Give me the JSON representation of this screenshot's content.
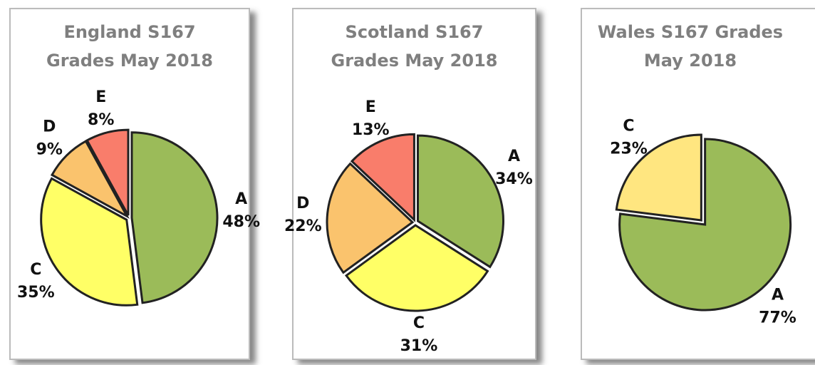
{
  "chart_data": [
    {
      "type": "pie",
      "title": [
        "England S167",
        "Grades May 2018"
      ],
      "categories": [
        "A",
        "C",
        "D",
        "E"
      ],
      "values": [
        48,
        35,
        9,
        8
      ],
      "value_labels": [
        "48%",
        "35%",
        "9%",
        "8%"
      ],
      "colors": [
        "#9bbb59",
        "#ffff66",
        "#fac36d",
        "#f97d6b"
      ]
    },
    {
      "type": "pie",
      "title": [
        "Scotland S167",
        "Grades May 2018"
      ],
      "categories": [
        "A",
        "C",
        "D",
        "E"
      ],
      "values": [
        34,
        31,
        22,
        13
      ],
      "value_labels": [
        "34%",
        "31%",
        "22%",
        "13%"
      ],
      "colors": [
        "#9bbb59",
        "#ffff66",
        "#fac36d",
        "#f97d6b"
      ]
    },
    {
      "type": "pie",
      "title": [
        "Wales S167 Grades",
        "May 2018"
      ],
      "categories": [
        "A",
        "C"
      ],
      "values": [
        77,
        23
      ],
      "value_labels": [
        "77%",
        "23%"
      ],
      "colors": [
        "#9bbb59",
        "#ffe680"
      ]
    }
  ]
}
